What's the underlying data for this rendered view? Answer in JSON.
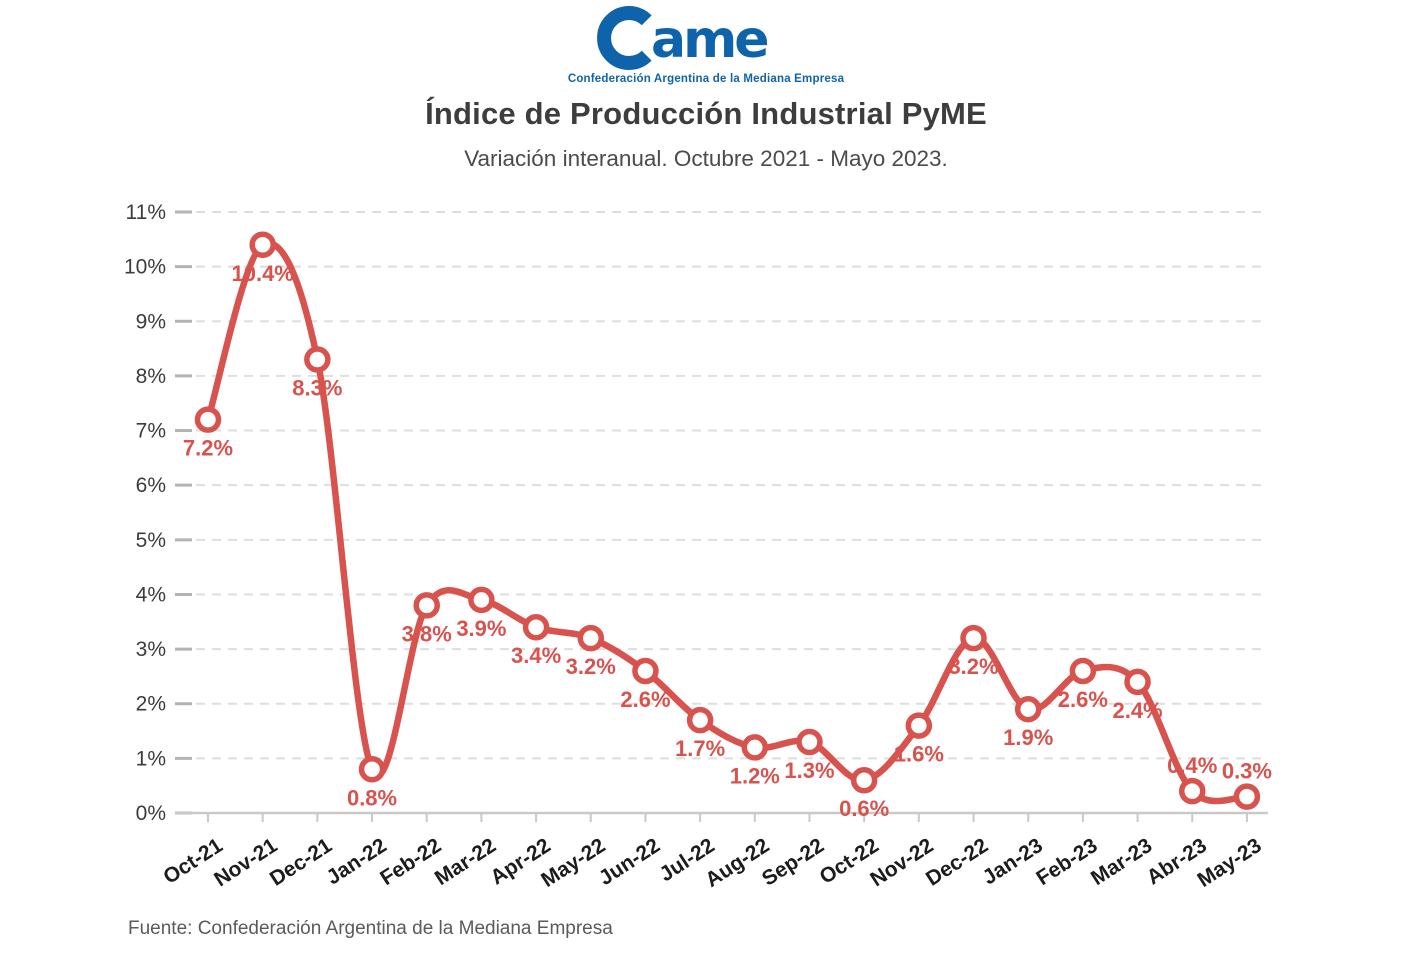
{
  "header": {
    "logo_wordmark": "ame",
    "logo_tagline": "Confederación Argentina de la Mediana Empresa"
  },
  "title": "Índice de Producción Industrial PyME",
  "subtitle": "Variación interanual. Octubre 2021 - Mayo 2023.",
  "footer": "Fuente: Confederación Argentina de la Mediana Empresa",
  "colors": {
    "line": "#d8524e",
    "logo_blue": "#0f63ab",
    "grid": "#dedede",
    "grid_tick": "#b3b3b3",
    "axis": "#c9c9c9",
    "y_label": "#3c3c3c",
    "x_label": "#1c1c1c"
  },
  "chart_data": {
    "type": "line",
    "title": "Índice de Producción Industrial PyME",
    "subtitle": "Variación interanual. Octubre 2021 - Mayo 2023.",
    "xlabel": "",
    "ylabel": "",
    "categories": [
      "Oct-21",
      "Nov-21",
      "Dec-21",
      "Jan-22",
      "Feb-22",
      "Mar-22",
      "Apr-22",
      "May-22",
      "Jun-22",
      "Jul-22",
      "Aug-22",
      "Sep-22",
      "Oct-22",
      "Nov-22",
      "Dec-22",
      "Jan-23",
      "Feb-23",
      "Mar-23",
      "Abr-23",
      "May-23"
    ],
    "values": [
      7.2,
      10.4,
      8.3,
      0.8,
      3.8,
      3.9,
      3.4,
      3.2,
      2.6,
      1.7,
      1.2,
      1.3,
      0.6,
      1.6,
      3.2,
      1.9,
      2.6,
      2.4,
      0.4,
      0.3
    ],
    "data_labels": [
      "7.2%",
      "10.4%",
      "8.3%",
      "0.8%",
      "3.8%",
      "3.9%",
      "3.4%",
      "3.2%",
      "2.6%",
      "1.7%",
      "1.2%",
      "1.3%",
      "0.6%",
      "1.6%",
      "3.2%",
      "1.9%",
      "2.6%",
      "2.4%",
      "0.4%",
      "0.3%"
    ],
    "label_positions": [
      "below",
      "below",
      "below",
      "below",
      "below",
      "below",
      "below",
      "below",
      "below",
      "below",
      "below",
      "below",
      "below",
      "below",
      "below",
      "below",
      "below",
      "below",
      "above",
      "above"
    ],
    "ylim": [
      0,
      11
    ],
    "ytick_step": 1,
    "ytick_labels": [
      "0%",
      "1%",
      "2%",
      "3%",
      "4%",
      "5%",
      "6%",
      "7%",
      "8%",
      "9%",
      "10%",
      "11%"
    ],
    "grid": "horizontal-dashed",
    "legend": "none",
    "smooth": true,
    "marker": "open-circle"
  }
}
